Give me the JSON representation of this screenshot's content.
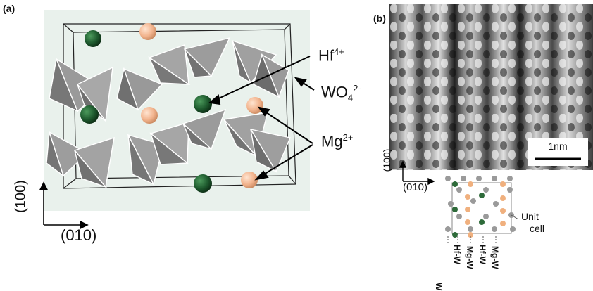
{
  "panel_a": {
    "label": "(a)",
    "ion_labels": {
      "hf": "Hf",
      "hf_sup": "4+",
      "wo": "WO",
      "wo_sub": "4",
      "wo_sup": "2-",
      "mg": "Mg",
      "mg_sup": "2+"
    },
    "axes": {
      "vertical": "(100)",
      "horizontal": "(010)"
    },
    "colors": {
      "background": "#e9f1ec",
      "hf": "#1e5a2e",
      "mg": "#f2b48e",
      "wo4": "#8c8c8c",
      "frame": "#222222"
    }
  },
  "panel_b": {
    "label": "(b)",
    "scale_bar": "1nm",
    "axes": {
      "vertical": "(100)",
      "horizontal": "(010)"
    },
    "unit_cell_label_1": "Unit",
    "unit_cell_label_2": "cell",
    "column_labels": [
      "W",
      "Hf-W",
      "Mg-W",
      "Hf-W",
      "Mg-W"
    ],
    "colors": {
      "w": "#9a9a9a",
      "hf": "#2e6b3a",
      "mg": "#f0b07e"
    }
  }
}
